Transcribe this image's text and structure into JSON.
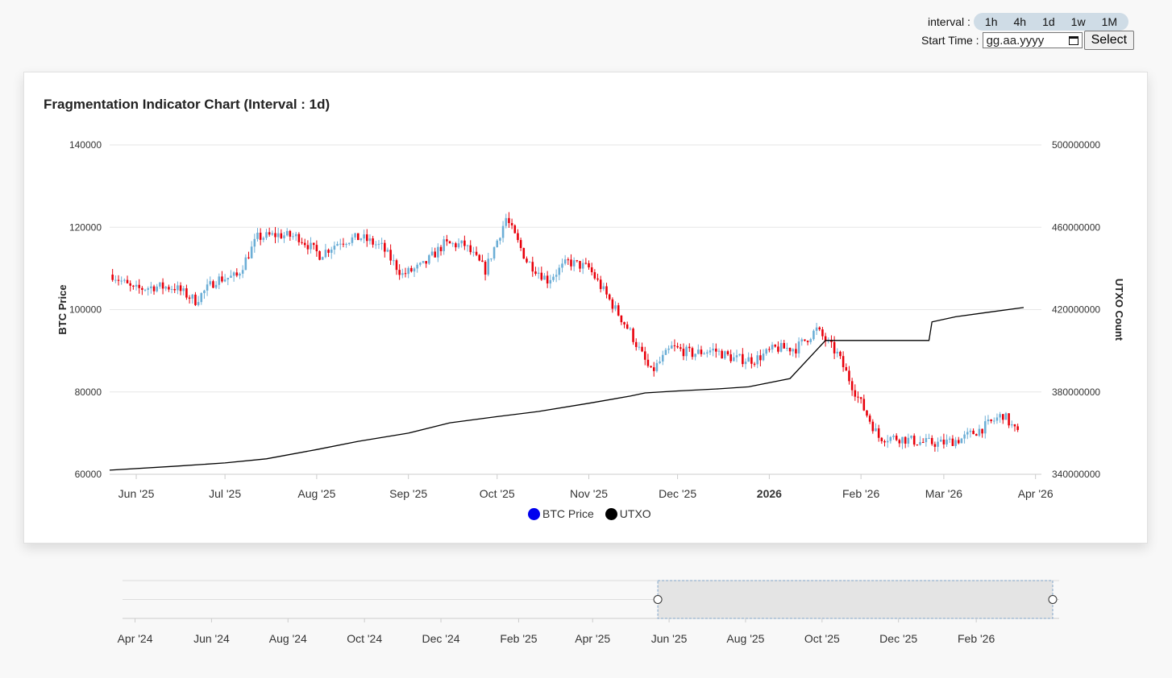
{
  "controls": {
    "interval_label": "interval :",
    "interval_options": [
      "1h",
      "4h",
      "1d",
      "1w",
      "1M"
    ],
    "start_time_label": "Start Time :",
    "date_placeholder": "gg.aa.yyyy",
    "select_label": "Select"
  },
  "colors": {
    "up": "#6baed6",
    "down": "#e8000b",
    "utxo_line": "#000000",
    "grid": "#e6e6e6",
    "legend_btc": "#0000ee",
    "legend_utxo": "#000000"
  },
  "chart_data": {
    "type": "candlestick+line",
    "title": "Fragmentation Indicator Chart (Interval : 1d)",
    "ylabel_left": "BTC Price",
    "ylabel_right": "UTXO Count",
    "y_left_range": [
      60000,
      140000
    ],
    "y_left_ticks": [
      "140000",
      "120000",
      "100000",
      "80000",
      "60000"
    ],
    "y_right_range": [
      340000000,
      500000000
    ],
    "y_right_ticks": [
      "500000000",
      "460000000",
      "420000000",
      "380000000",
      "340000000"
    ],
    "x_range": [
      "2025-05-23",
      "2026-04-03"
    ],
    "x_ticks": [
      "Jun '25",
      "Jul '25",
      "Aug '25",
      "Sep '25",
      "Oct '25",
      "Nov '25",
      "Dec '25",
      "2026",
      "Feb '26",
      "Mar '26",
      "Apr '26"
    ],
    "grid": true,
    "legend": [
      "BTC Price",
      "UTXO"
    ],
    "legend_placement": "bottom-center",
    "btc_close_weekly": [
      [
        "2025-05-24",
        108500
      ],
      [
        "2025-05-31",
        104800
      ],
      [
        "2025-06-07",
        105600
      ],
      [
        "2025-06-14",
        105400
      ],
      [
        "2025-06-21",
        102200
      ],
      [
        "2025-06-28",
        107300
      ],
      [
        "2025-07-05",
        108100
      ],
      [
        "2025-07-12",
        117500
      ],
      [
        "2025-07-19",
        118200
      ],
      [
        "2025-07-26",
        117600
      ],
      [
        "2025-08-02",
        113300
      ],
      [
        "2025-08-09",
        116700
      ],
      [
        "2025-08-16",
        117500
      ],
      [
        "2025-08-23",
        115200
      ],
      [
        "2025-08-30",
        108500
      ],
      [
        "2025-09-06",
        110700
      ],
      [
        "2025-09-13",
        115900
      ],
      [
        "2025-09-20",
        115700
      ],
      [
        "2025-09-27",
        109600
      ],
      [
        "2025-10-04",
        122200
      ],
      [
        "2025-10-11",
        111900
      ],
      [
        "2025-10-18",
        107200
      ],
      [
        "2025-10-25",
        111600
      ],
      [
        "2025-11-01",
        110100
      ],
      [
        "2025-11-08",
        102300
      ],
      [
        "2025-11-15",
        94500
      ],
      [
        "2025-11-22",
        84700
      ],
      [
        "2025-11-29",
        90800
      ],
      [
        "2025-12-06",
        89300
      ],
      [
        "2025-12-13",
        90200
      ],
      [
        "2025-12-20",
        88100
      ],
      [
        "2025-12-27",
        87800
      ],
      [
        "2026-01-03",
        90600
      ],
      [
        "2026-01-10",
        90600
      ],
      [
        "2026-01-17",
        95100
      ],
      [
        "2026-01-24",
        89200
      ],
      [
        "2026-01-31",
        78600
      ],
      [
        "2026-02-07",
        69000
      ],
      [
        "2026-02-14",
        68800
      ],
      [
        "2026-02-21",
        67800
      ],
      [
        "2026-02-28",
        67500
      ],
      [
        "2026-03-07",
        68600
      ],
      [
        "2026-03-14",
        71200
      ],
      [
        "2026-03-21",
        74500
      ],
      [
        "2026-03-26",
        69800
      ]
    ],
    "utxo_count": [
      [
        "2025-05-23",
        342000000
      ],
      [
        "2025-06-15",
        344000000
      ],
      [
        "2025-07-01",
        345500000
      ],
      [
        "2025-07-15",
        347500000
      ],
      [
        "2025-08-01",
        352000000
      ],
      [
        "2025-08-15",
        356000000
      ],
      [
        "2025-09-01",
        360000000
      ],
      [
        "2025-09-15",
        365000000
      ],
      [
        "2025-10-01",
        368000000
      ],
      [
        "2025-10-15",
        370500000
      ],
      [
        "2025-11-01",
        374500000
      ],
      [
        "2025-11-15",
        378000000
      ],
      [
        "2025-11-20",
        379500000
      ],
      [
        "2025-12-01",
        380500000
      ],
      [
        "2025-12-15",
        381500000
      ],
      [
        "2025-12-25",
        382500000
      ],
      [
        "2026-01-08",
        386500000
      ],
      [
        "2026-01-20",
        405000000
      ],
      [
        "2026-02-05",
        405000000
      ],
      [
        "2026-02-24",
        405000000
      ],
      [
        "2026-02-25",
        414000000
      ],
      [
        "2026-03-05",
        416500000
      ],
      [
        "2026-03-15",
        418500000
      ],
      [
        "2026-03-28",
        421000000
      ]
    ]
  },
  "navigator": {
    "x_ticks": [
      "Apr '24",
      "Jun '24",
      "Aug '24",
      "Oct '24",
      "Dec '24",
      "Feb '25",
      "Apr '25",
      "Jun '25",
      "Aug '25",
      "Oct '25",
      "Dec '25",
      "Feb '26"
    ],
    "selected_range": [
      "2025-05-23",
      "2026-04-03"
    ]
  }
}
